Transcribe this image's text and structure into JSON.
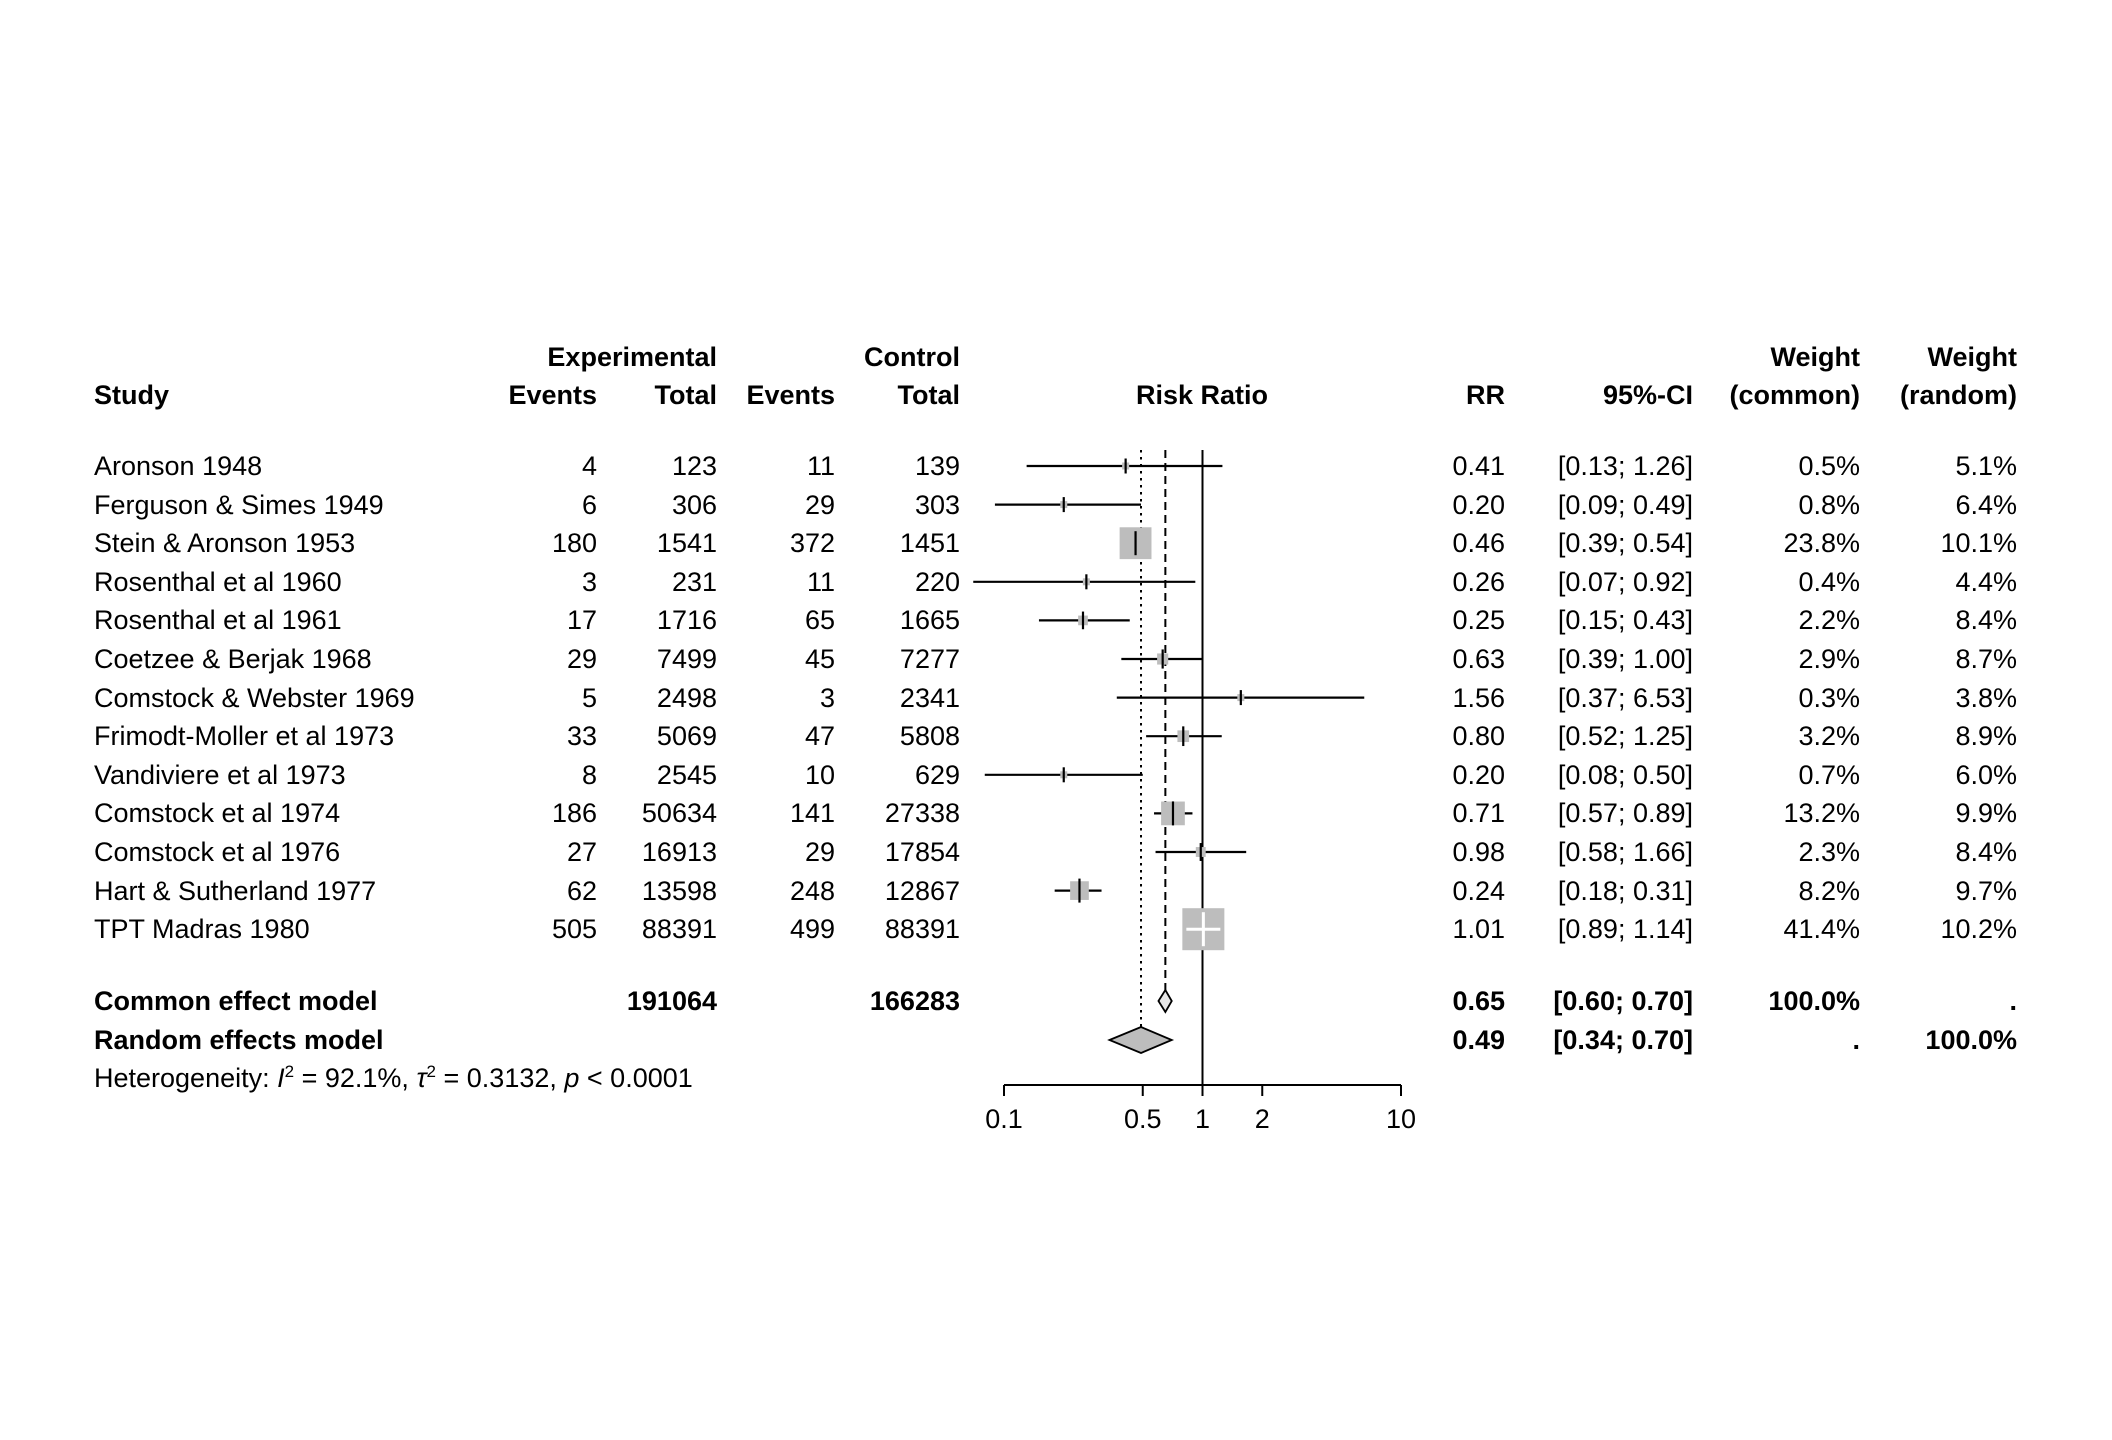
{
  "header": {
    "group_experimental": "Experimental",
    "group_control": "Control",
    "study": "Study",
    "events": "Events",
    "total": "Total",
    "risk_ratio": "Risk Ratio",
    "rr": "RR",
    "ci": "95%-CI",
    "weight_common_l1": "Weight",
    "weight_common_l2": "(common)",
    "weight_random_l1": "Weight",
    "weight_random_l2": "(random)"
  },
  "table": {
    "rows": [
      {
        "name": "Aronson 1948",
        "exp_events": "4",
        "exp_total": "123",
        "ctrl_events": "11",
        "ctrl_total": "139",
        "rr": "0.41",
        "ci": "[0.13; 1.26]",
        "w_common": "0.5%",
        "w_random": "5.1%"
      },
      {
        "name": "Ferguson & Simes 1949",
        "exp_events": "6",
        "exp_total": "306",
        "ctrl_events": "29",
        "ctrl_total": "303",
        "rr": "0.20",
        "ci": "[0.09; 0.49]",
        "w_common": "0.8%",
        "w_random": "6.4%"
      },
      {
        "name": "Stein & Aronson 1953",
        "exp_events": "180",
        "exp_total": "1541",
        "ctrl_events": "372",
        "ctrl_total": "1451",
        "rr": "0.46",
        "ci": "[0.39; 0.54]",
        "w_common": "23.8%",
        "w_random": "10.1%"
      },
      {
        "name": "Rosenthal et al 1960",
        "exp_events": "3",
        "exp_total": "231",
        "ctrl_events": "11",
        "ctrl_total": "220",
        "rr": "0.26",
        "ci": "[0.07; 0.92]",
        "w_common": "0.4%",
        "w_random": "4.4%"
      },
      {
        "name": "Rosenthal et al 1961",
        "exp_events": "17",
        "exp_total": "1716",
        "ctrl_events": "65",
        "ctrl_total": "1665",
        "rr": "0.25",
        "ci": "[0.15; 0.43]",
        "w_common": "2.2%",
        "w_random": "8.4%"
      },
      {
        "name": "Coetzee & Berjak 1968",
        "exp_events": "29",
        "exp_total": "7499",
        "ctrl_events": "45",
        "ctrl_total": "7277",
        "rr": "0.63",
        "ci": "[0.39; 1.00]",
        "w_common": "2.9%",
        "w_random": "8.7%"
      },
      {
        "name": "Comstock & Webster 1969",
        "exp_events": "5",
        "exp_total": "2498",
        "ctrl_events": "3",
        "ctrl_total": "2341",
        "rr": "1.56",
        "ci": "[0.37; 6.53]",
        "w_common": "0.3%",
        "w_random": "3.8%"
      },
      {
        "name": "Frimodt-Moller et al 1973",
        "exp_events": "33",
        "exp_total": "5069",
        "ctrl_events": "47",
        "ctrl_total": "5808",
        "rr": "0.80",
        "ci": "[0.52; 1.25]",
        "w_common": "3.2%",
        "w_random": "8.9%"
      },
      {
        "name": "Vandiviere et al 1973",
        "exp_events": "8",
        "exp_total": "2545",
        "ctrl_events": "10",
        "ctrl_total": "629",
        "rr": "0.20",
        "ci": "[0.08; 0.50]",
        "w_common": "0.7%",
        "w_random": "6.0%"
      },
      {
        "name": "Comstock et al 1974",
        "exp_events": "186",
        "exp_total": "50634",
        "ctrl_events": "141",
        "ctrl_total": "27338",
        "rr": "0.71",
        "ci": "[0.57; 0.89]",
        "w_common": "13.2%",
        "w_random": "9.9%"
      },
      {
        "name": "Comstock et al 1976",
        "exp_events": "27",
        "exp_total": "16913",
        "ctrl_events": "29",
        "ctrl_total": "17854",
        "rr": "0.98",
        "ci": "[0.58; 1.66]",
        "w_common": "2.3%",
        "w_random": "8.4%"
      },
      {
        "name": "Hart & Sutherland 1977",
        "exp_events": "62",
        "exp_total": "13598",
        "ctrl_events": "248",
        "ctrl_total": "12867",
        "rr": "0.24",
        "ci": "[0.18; 0.31]",
        "w_common": "8.2%",
        "w_random": "9.7%"
      },
      {
        "name": "TPT Madras 1980",
        "exp_events": "505",
        "exp_total": "88391",
        "ctrl_events": "499",
        "ctrl_total": "88391",
        "rr": "1.01",
        "ci": "[0.89; 1.14]",
        "w_common": "41.4%",
        "w_random": "10.2%"
      }
    ],
    "summary_rows": [
      {
        "name": "Common effect model",
        "exp_total": "191064",
        "ctrl_total": "166283",
        "rr": "0.65",
        "ci": "[0.60; 0.70]",
        "w_common": "100.0%",
        "w_random": "."
      },
      {
        "name": "Random effects model",
        "rr": "0.49",
        "ci": "[0.34; 0.70]",
        "w_common": ".",
        "w_random": "100.0%"
      }
    ]
  },
  "heterogeneity": {
    "prefix": "Heterogeneity: ",
    "i": "I",
    "i_sup": "2",
    "i_eq": " = 92.1%, ",
    "tau": "τ",
    "tau_sup": "2",
    "tau_eq": " = 0.3132, ",
    "p": "p",
    "p_eq": " < 0.0001"
  },
  "chart_data": {
    "type": "forest",
    "title": "",
    "x_scale": "log10",
    "x_axis": {
      "ticks": [
        0.1,
        0.5,
        1,
        2,
        10
      ],
      "labels": [
        "0.1",
        "0.5",
        "1",
        "2",
        "10"
      ],
      "range": [
        0.1,
        10
      ]
    },
    "reference_line": 1,
    "common_effect_line": 0.65,
    "random_effects_line": 0.49,
    "studies": [
      {
        "name": "Aronson 1948",
        "rr": 0.41,
        "ci": [
          0.13,
          1.26
        ],
        "weight_common": 0.5,
        "weight_random": 5.1
      },
      {
        "name": "Ferguson & Simes 1949",
        "rr": 0.2,
        "ci": [
          0.09,
          0.49
        ],
        "weight_common": 0.8,
        "weight_random": 6.4
      },
      {
        "name": "Stein & Aronson 1953",
        "rr": 0.46,
        "ci": [
          0.39,
          0.54
        ],
        "weight_common": 23.8,
        "weight_random": 10.1
      },
      {
        "name": "Rosenthal et al 1960",
        "rr": 0.26,
        "ci": [
          0.07,
          0.92
        ],
        "weight_common": 0.4,
        "weight_random": 4.4
      },
      {
        "name": "Rosenthal et al 1961",
        "rr": 0.25,
        "ci": [
          0.15,
          0.43
        ],
        "weight_common": 2.2,
        "weight_random": 8.4
      },
      {
        "name": "Coetzee & Berjak 1968",
        "rr": 0.63,
        "ci": [
          0.39,
          1.0
        ],
        "weight_common": 2.9,
        "weight_random": 8.7
      },
      {
        "name": "Comstock & Webster 1969",
        "rr": 1.56,
        "ci": [
          0.37,
          6.53
        ],
        "weight_common": 0.3,
        "weight_random": 3.8
      },
      {
        "name": "Frimodt-Moller et al 1973",
        "rr": 0.8,
        "ci": [
          0.52,
          1.25
        ],
        "weight_common": 3.2,
        "weight_random": 8.9
      },
      {
        "name": "Vandiviere et al 1973",
        "rr": 0.2,
        "ci": [
          0.08,
          0.5
        ],
        "weight_common": 0.7,
        "weight_random": 6.0
      },
      {
        "name": "Comstock et al 1974",
        "rr": 0.71,
        "ci": [
          0.57,
          0.89
        ],
        "weight_common": 13.2,
        "weight_random": 9.9
      },
      {
        "name": "Comstock et al 1976",
        "rr": 0.98,
        "ci": [
          0.58,
          1.66
        ],
        "weight_common": 2.3,
        "weight_random": 8.4
      },
      {
        "name": "Hart & Sutherland 1977",
        "rr": 0.24,
        "ci": [
          0.18,
          0.31
        ],
        "weight_common": 8.2,
        "weight_random": 9.7
      },
      {
        "name": "TPT Madras 1980",
        "rr": 1.01,
        "ci": [
          0.89,
          1.14
        ],
        "weight_common": 41.4,
        "weight_random": 10.2
      }
    ],
    "diamonds": [
      {
        "name": "Common effect model",
        "rr": 0.65,
        "ci": [
          0.6,
          0.7
        ]
      },
      {
        "name": "Random effects model",
        "rr": 0.49,
        "ci": [
          0.34,
          0.7
        ]
      }
    ],
    "heterogeneity": {
      "I2": "92.1%",
      "tau2": 0.3132,
      "p": "< 0.0001"
    }
  }
}
